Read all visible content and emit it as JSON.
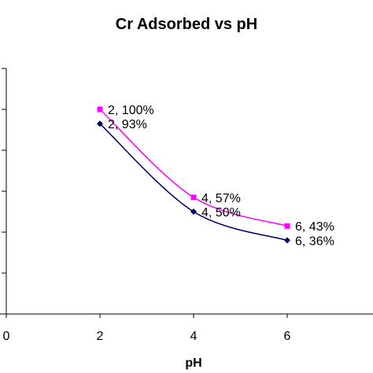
{
  "chart_data": {
    "type": "line",
    "title": "Cr Adsorbed vs pH",
    "xlabel": "pH",
    "ylabel": "",
    "xlim": [
      0,
      8
    ],
    "ylim": [
      0,
      150
    ],
    "x_ticks": [
      "0",
      "2",
      "4",
      "6"
    ],
    "legend": "none",
    "grid": false,
    "series": [
      {
        "color": "#ff00ff",
        "marker": "square",
        "x": [
          2,
          4,
          6
        ],
        "y": [
          100,
          57,
          43
        ],
        "labels": [
          "2, 100%",
          "4, 57%",
          "6, 43%"
        ]
      },
      {
        "color": "#000066",
        "marker": "diamond",
        "x": [
          2,
          4,
          6
        ],
        "y": [
          93,
          50,
          36
        ],
        "labels": [
          "2, 93%",
          "4, 50%",
          "6, 36%"
        ]
      }
    ]
  }
}
